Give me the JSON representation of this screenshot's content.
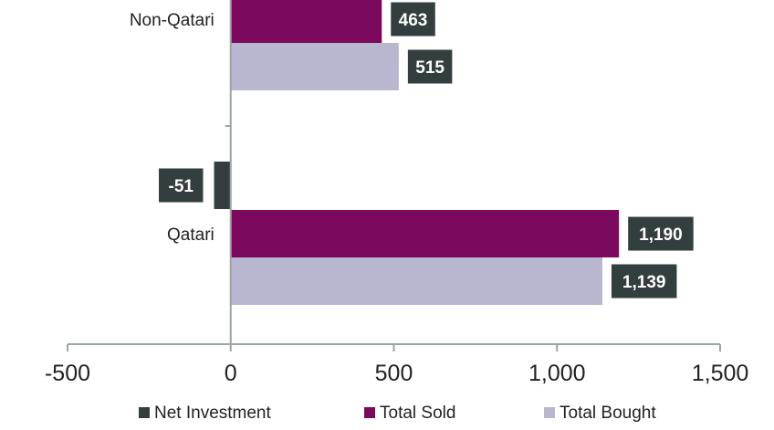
{
  "chart_data": {
    "type": "bar",
    "orientation": "horizontal",
    "categories": [
      "Non-Qatari",
      "Qatari"
    ],
    "series": [
      {
        "name": "Net Investment",
        "values": [
          null,
          -51
        ],
        "color": "#333f3e"
      },
      {
        "name": "Total Sold",
        "values": [
          463,
          1190
        ],
        "color": "#7b0a5e"
      },
      {
        "name": "Total Bought",
        "values": [
          515,
          1139
        ],
        "color": "#b9b6cf"
      }
    ],
    "data_labels": [
      {
        "category": "Non-Qatari",
        "series": "Total Sold",
        "text": "463"
      },
      {
        "category": "Non-Qatari",
        "series": "Total Bought",
        "text": "515"
      },
      {
        "category": "Qatari",
        "series": "Net Investment",
        "text": "-51"
      },
      {
        "category": "Qatari",
        "series": "Total Sold",
        "text": "1,190"
      },
      {
        "category": "Qatari",
        "series": "Total Bought",
        "text": "1,139"
      }
    ],
    "xlim": [
      -500,
      1500
    ],
    "xticks": [
      -500,
      0,
      500,
      1000,
      1500
    ],
    "xtick_labels": [
      "-500",
      "0",
      "500",
      "1,000",
      "1,500"
    ],
    "label_box_color": "#333f3e",
    "grid": false,
    "legend_position": "bottom"
  }
}
